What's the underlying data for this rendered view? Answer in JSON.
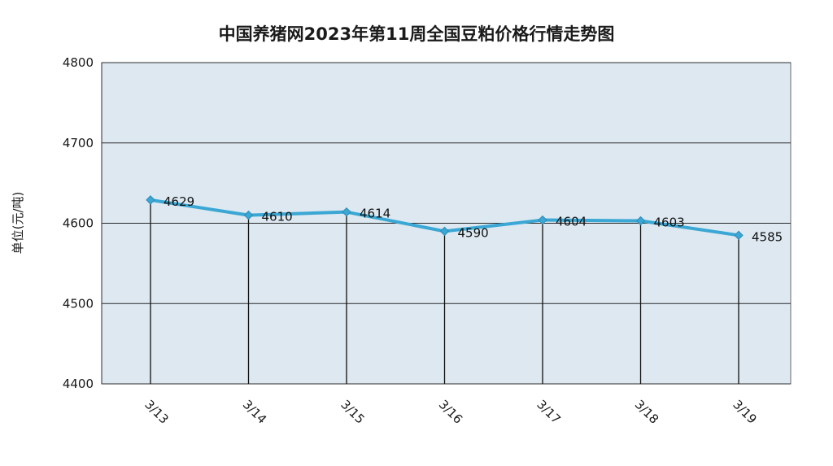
{
  "chart_data": {
    "type": "line",
    "title": "中国养猪网2023年第11周全国豆粕价格行情走势图",
    "ylabel": "单位(元/吨)",
    "xlabel": "",
    "categories": [
      "3/13",
      "3/14",
      "3/15",
      "3/16",
      "3/17",
      "3/18",
      "3/19"
    ],
    "values": [
      4629,
      4610,
      4614,
      4590,
      4604,
      4603,
      4585
    ],
    "ylim": [
      4400,
      4800
    ],
    "yticks": [
      4400,
      4500,
      4600,
      4700,
      4800
    ],
    "grid": true,
    "drop_lines": true,
    "data_labels": true,
    "legend": "none",
    "colors": {
      "line": "#3aa7d4",
      "marker": "#3aa7d4",
      "plot_bg": "#dde8f1",
      "gridline": "#2b2b2b",
      "drop_line": "#111111"
    }
  }
}
